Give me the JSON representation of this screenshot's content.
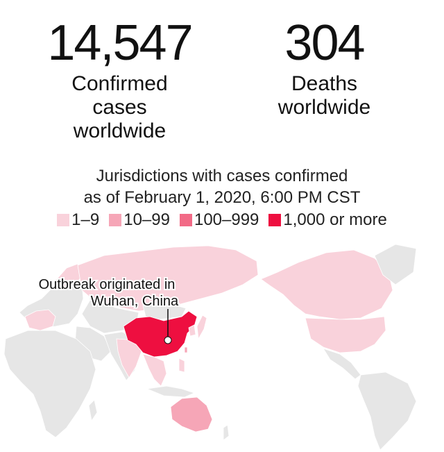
{
  "stats": {
    "confirmed": {
      "number": "14,547",
      "label": "Confirmed\ncases\nworldwide"
    },
    "deaths": {
      "number": "304",
      "label": "Deaths\nworldwide"
    }
  },
  "subtitle": "Jurisdictions with cases confirmed\nas of February 1, 2020, 6:00 PM CST",
  "legend": [
    {
      "label": "1–9",
      "color": "#f9d2db"
    },
    {
      "label": "10–99",
      "color": "#f6a6b7"
    },
    {
      "label": "100–999",
      "color": "#f26a86"
    },
    {
      "label": "1,000 or more",
      "color": "#ee0f40"
    }
  ],
  "map": {
    "no_cases_color": "#e6e6e6",
    "annotation": {
      "line1": "Outbreak originated in",
      "line2": "Wuhan, China"
    }
  }
}
